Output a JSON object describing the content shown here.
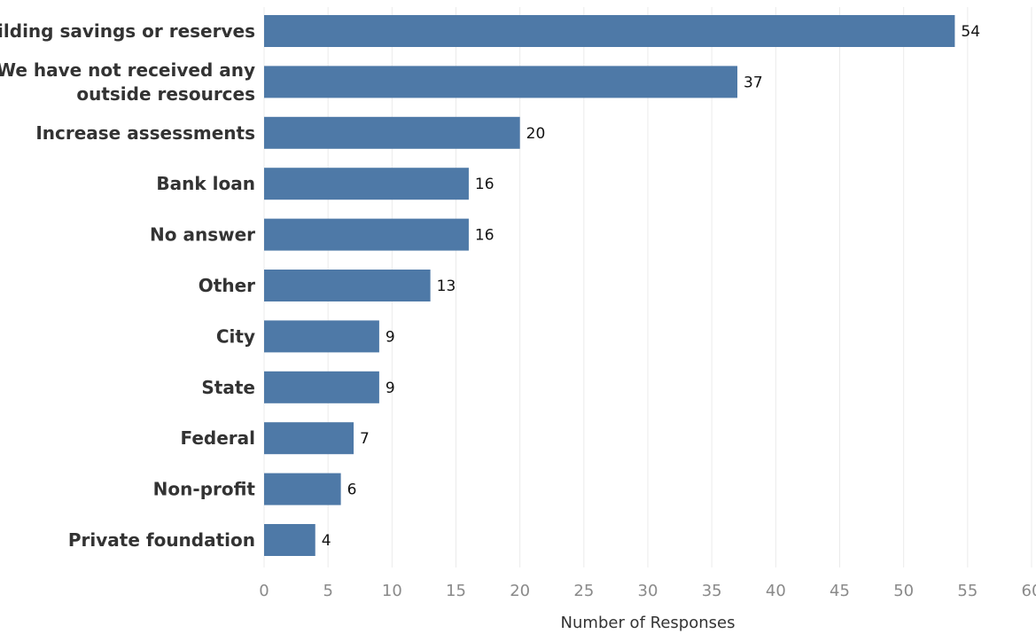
{
  "chart_data": {
    "type": "bar",
    "orientation": "horizontal",
    "categories": [
      [
        "Building savings or reserves"
      ],
      [
        "We have not received any",
        "outside resources"
      ],
      [
        "Increase assessments"
      ],
      [
        "Bank loan"
      ],
      [
        "No answer"
      ],
      [
        "Other"
      ],
      [
        "City"
      ],
      [
        "State"
      ],
      [
        "Federal"
      ],
      [
        "Non-profit"
      ],
      [
        "Private foundation"
      ]
    ],
    "values": [
      54,
      37,
      20,
      16,
      16,
      13,
      9,
      9,
      7,
      6,
      4
    ],
    "xlabel": "Number of Responses",
    "ylabel": "",
    "xlim": [
      0,
      60
    ],
    "xticks": [
      0,
      5,
      10,
      15,
      20,
      25,
      30,
      35,
      40,
      45,
      50,
      55,
      60
    ],
    "grid": true,
    "colors": {
      "bar": "#4e79a7"
    }
  }
}
